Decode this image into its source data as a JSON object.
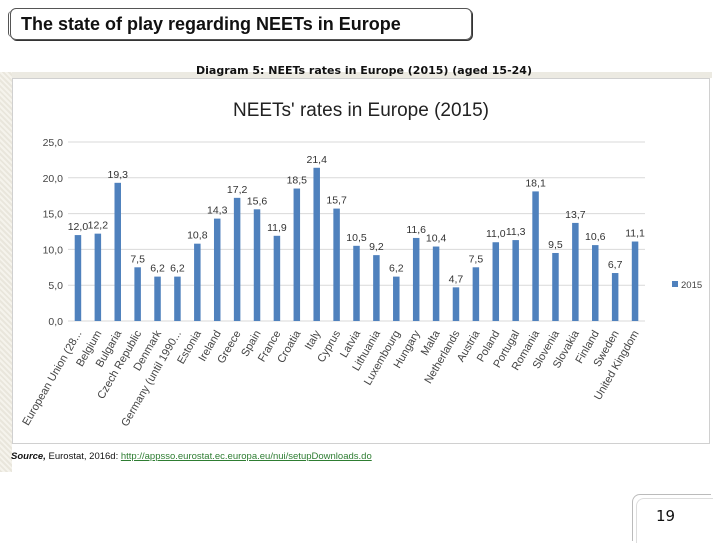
{
  "slide": {
    "title": "The state of play regarding NEETs in Europe",
    "diagram_caption": "Diagram 5: NEETs rates in Europe (2015) (aged 15-24)",
    "source_label": "Source,",
    "source_text": " Eurostat, 2016d: ",
    "source_link": "http://appsso.eurostat.ec.europa.eu/nui/setupDownloads.do",
    "page_number": "19"
  },
  "colors": {
    "bar": "#4f81bd",
    "grid": "#d9d9d9"
  },
  "chart_data": {
    "type": "bar",
    "title": "NEETs' rates in Europe (2015)",
    "xlabel": "",
    "ylabel": "",
    "ylim": [
      0,
      25
    ],
    "yticks": [
      "0,0",
      "5,0",
      "10,0",
      "15,0",
      "20,0",
      "25,0"
    ],
    "grid": true,
    "legend_position": "right",
    "categories": [
      "European Union (28...",
      "Belgium",
      "Bulgaria",
      "Czech Republic",
      "Denmark",
      "Germany (until 1990...",
      "Estonia",
      "Ireland",
      "Greece",
      "Spain",
      "France",
      "Croatia",
      "Italy",
      "Cyprus",
      "Latvia",
      "Lithuania",
      "Luxembourg",
      "Hungary",
      "Malta",
      "Netherlands",
      "Austria",
      "Poland",
      "Portugal",
      "Romania",
      "Slovenia",
      "Slovakia",
      "Finland",
      "Sweden",
      "United Kingdom"
    ],
    "series": [
      {
        "name": "2015",
        "values": [
          12.0,
          12.2,
          19.3,
          7.5,
          6.2,
          6.2,
          10.8,
          14.3,
          17.2,
          15.6,
          11.9,
          18.5,
          21.4,
          15.7,
          10.5,
          9.2,
          6.2,
          11.6,
          10.4,
          4.7,
          7.5,
          11.0,
          11.3,
          18.1,
          9.5,
          13.7,
          10.6,
          6.7,
          11.1
        ],
        "labels": [
          "12,0",
          "12,2",
          "19,3",
          "7,5",
          "6,2",
          "6,2",
          "10,8",
          "14,3",
          "17,2",
          "15,6",
          "11,9",
          "18,5",
          "21,4",
          "15,7",
          "10,5",
          "9,2",
          "6,2",
          "11,6",
          "10,4",
          "4,7",
          "7,5",
          "11,0",
          "11,3",
          "18,1",
          "9,5",
          "13,7",
          "10,6",
          "6,7",
          "11,1"
        ]
      }
    ]
  }
}
